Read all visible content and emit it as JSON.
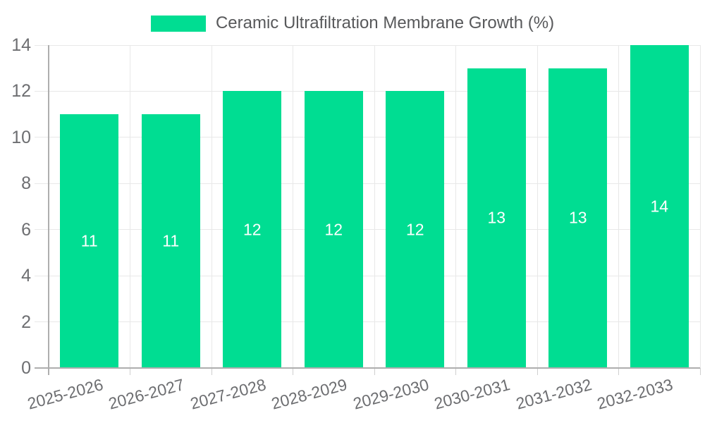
{
  "chart_data": {
    "type": "bar",
    "title": "Ceramic Ultrafiltration Membrane Growth (%)",
    "categories": [
      "2025-2026",
      "2026-2027",
      "2027-2028",
      "2028-2029",
      "2029-2030",
      "2030-2031",
      "2031-2032",
      "2032-2033"
    ],
    "values": [
      11,
      11,
      12,
      12,
      12,
      13,
      13,
      14
    ],
    "xlabel": "",
    "ylabel": "",
    "ylim": [
      0,
      14
    ],
    "yticks": [
      0,
      2,
      4,
      6,
      8,
      10,
      12,
      14
    ],
    "grid": true,
    "legend_position": "top",
    "data_labels_inside_bars": true,
    "colors": {
      "bar": "#00DD92",
      "grid": "#e8e8e8",
      "axis": "#aeaeae",
      "tick": "#cfcfcf",
      "label": "#6d6e71",
      "title": "#58595b",
      "data_label": "#ffffff",
      "background": "#ffffff"
    }
  }
}
